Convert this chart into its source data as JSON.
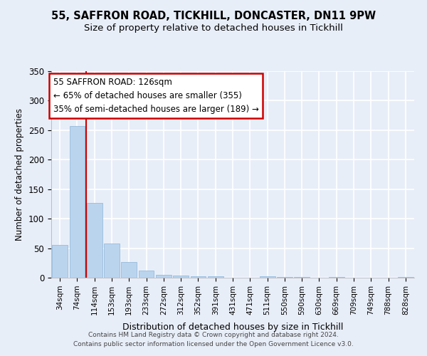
{
  "title1": "55, SAFFRON ROAD, TICKHILL, DONCASTER, DN11 9PW",
  "title2": "Size of property relative to detached houses in Tickhill",
  "xlabel": "Distribution of detached houses by size in Tickhill",
  "ylabel": "Number of detached properties",
  "bar_labels": [
    "34sqm",
    "74sqm",
    "114sqm",
    "153sqm",
    "193sqm",
    "233sqm",
    "272sqm",
    "312sqm",
    "352sqm",
    "391sqm",
    "431sqm",
    "471sqm",
    "511sqm",
    "550sqm",
    "590sqm",
    "630sqm",
    "669sqm",
    "709sqm",
    "749sqm",
    "788sqm",
    "828sqm"
  ],
  "bar_values": [
    55,
    257,
    127,
    58,
    27,
    12,
    5,
    4,
    3,
    2,
    0,
    0,
    2,
    1,
    1,
    0,
    1,
    0,
    0,
    0,
    1
  ],
  "bar_color": "#bad4ed",
  "bar_edge_color": "#8ab4d8",
  "vline_color": "#cc0000",
  "annotation_title": "55 SAFFRON ROAD: 126sqm",
  "annotation_line1": "← 65% of detached houses are smaller (355)",
  "annotation_line2": "35% of semi-detached houses are larger (189) →",
  "annotation_box_color": "#ffffff",
  "annotation_border_color": "#cc0000",
  "ylim": [
    0,
    350
  ],
  "yticks": [
    0,
    50,
    100,
    150,
    200,
    250,
    300,
    350
  ],
  "footer1": "Contains HM Land Registry data © Crown copyright and database right 2024.",
  "footer2": "Contains public sector information licensed under the Open Government Licence v3.0.",
  "bg_color": "#e8eef8",
  "plot_bg_color": "#e8eef8",
  "grid_color": "#ffffff",
  "title1_fontsize": 10.5,
  "title2_fontsize": 9.5
}
